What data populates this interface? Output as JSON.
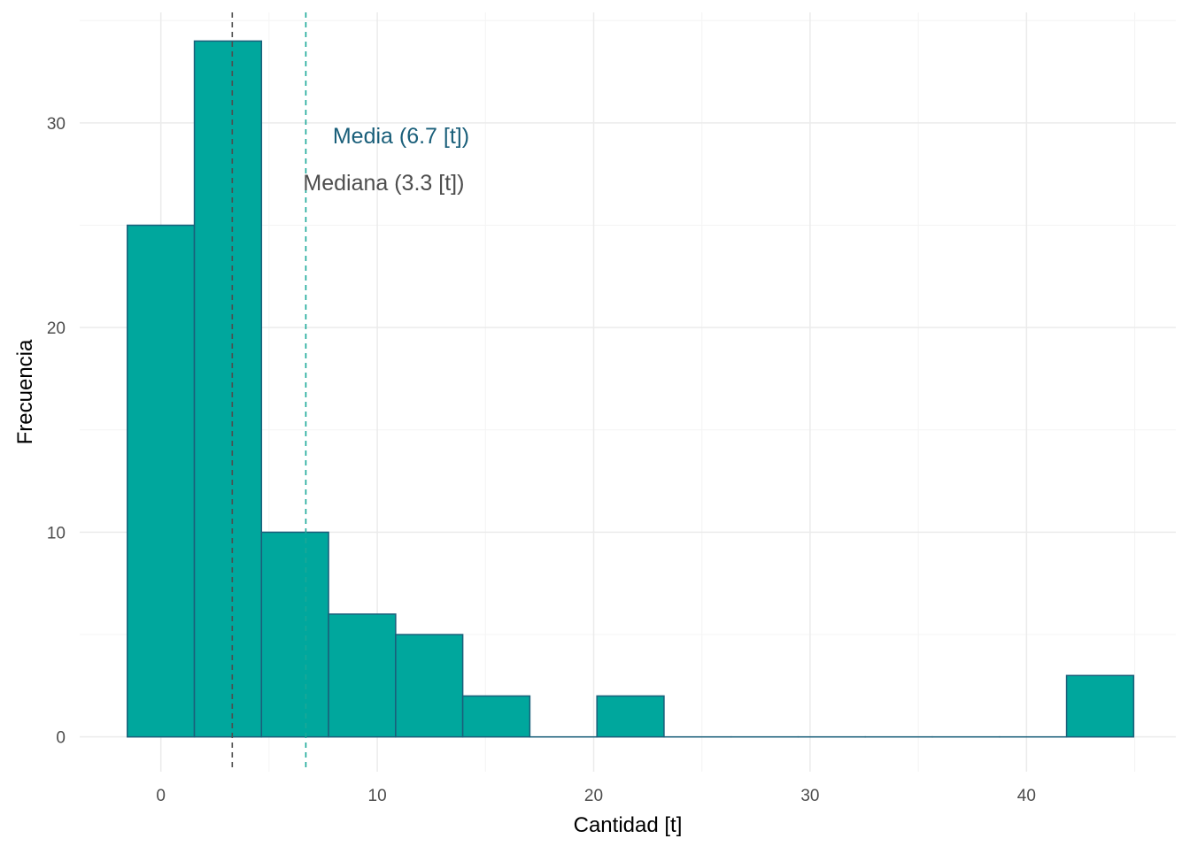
{
  "chart_data": {
    "type": "bar",
    "subtype": "histogram",
    "title": "",
    "xlabel": "Cantidad [t]",
    "ylabel": "Frecuencia",
    "xlim": [
      -3.75,
      46.9
    ],
    "ylim": [
      -1.7,
      35.4
    ],
    "x_ticks": [
      0,
      10,
      20,
      30,
      40
    ],
    "y_ticks": [
      0,
      10,
      20,
      30
    ],
    "grid": true,
    "bins": [
      {
        "x0": -1.55,
        "x1": 1.55,
        "count": 25
      },
      {
        "x0": 1.55,
        "x1": 4.65,
        "count": 34
      },
      {
        "x0": 4.65,
        "x1": 7.75,
        "count": 10
      },
      {
        "x0": 7.75,
        "x1": 10.85,
        "count": 6
      },
      {
        "x0": 10.85,
        "x1": 13.95,
        "count": 5
      },
      {
        "x0": 13.95,
        "x1": 17.05,
        "count": 2
      },
      {
        "x0": 17.05,
        "x1": 20.15,
        "count": 0
      },
      {
        "x0": 20.15,
        "x1": 23.25,
        "count": 2
      },
      {
        "x0": 23.25,
        "x1": 26.35,
        "count": 0
      },
      {
        "x0": 26.35,
        "x1": 29.45,
        "count": 0
      },
      {
        "x0": 29.45,
        "x1": 32.55,
        "count": 0
      },
      {
        "x0": 32.55,
        "x1": 35.65,
        "count": 0
      },
      {
        "x0": 35.65,
        "x1": 38.75,
        "count": 0
      },
      {
        "x0": 38.75,
        "x1": 41.85,
        "count": 0
      },
      {
        "x0": 41.85,
        "x1": 44.95,
        "count": 3
      }
    ],
    "reference_lines": [
      {
        "name": "median",
        "x": 3.3,
        "color": "#4d4d4d",
        "style": "dashed"
      },
      {
        "name": "mean",
        "x": 6.7,
        "color": "#1aa898",
        "style": "dashed"
      }
    ],
    "annotations": [
      {
        "text": "Media (6.7 [t])",
        "x": 11.1,
        "y": 29.4,
        "color": "#1a5f7a"
      },
      {
        "text": "Mediana (3.3 [t])",
        "x": 10.3,
        "y": 27.1,
        "color": "#4d4d4d"
      }
    ],
    "colors": {
      "bar_fill": "#00a79d",
      "bar_stroke": "#1a5f7a",
      "grid_major": "#ebebeb",
      "grid_minor": "#f4f4f4"
    }
  }
}
